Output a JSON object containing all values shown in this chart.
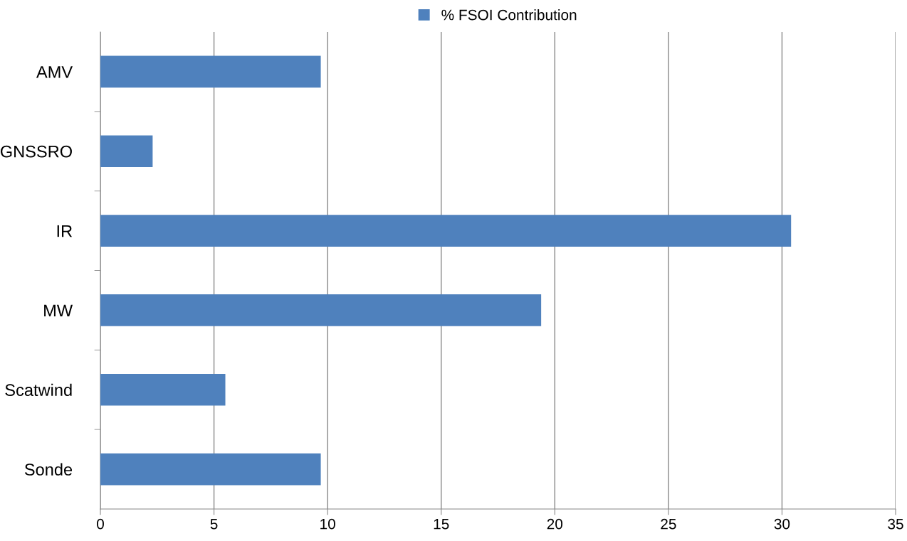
{
  "chart_data": {
    "type": "bar",
    "orientation": "horizontal",
    "categories": [
      "AMV",
      "GNSSRO",
      "IR",
      "MW",
      "Scatwind",
      "Sonde"
    ],
    "series": [
      {
        "name": "% FSOI Contribution",
        "color": "#4f81bd",
        "values": [
          9.7,
          2.3,
          30.4,
          19.4,
          5.5,
          9.7
        ]
      }
    ],
    "xlim": [
      0,
      35
    ],
    "xticks": [
      0,
      5,
      10,
      15,
      20,
      25,
      30,
      35
    ],
    "grid": "x",
    "legend": "top"
  }
}
